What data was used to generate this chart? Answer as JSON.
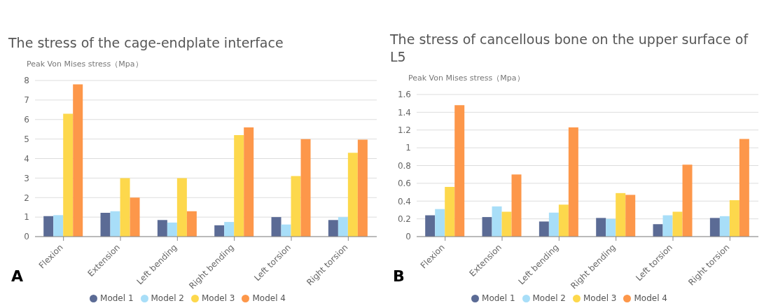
{
  "chart_data": [
    {
      "type": "bar",
      "title": "The stress of the cage-endplate interface",
      "ylabel": "Peak Von Mises stress（Mpa）",
      "annotations": [
        "A"
      ],
      "categories": [
        "Flexion",
        "Extension",
        "Left bending",
        "Right bending",
        "Left torsion",
        "Right torsion"
      ],
      "series": [
        {
          "name": "Model 1",
          "color": "#5b6b95",
          "values": [
            1.05,
            1.22,
            0.85,
            0.58,
            1.0,
            0.85
          ]
        },
        {
          "name": "Model 2",
          "color": "#a8def8",
          "values": [
            1.1,
            1.3,
            0.72,
            0.75,
            0.62,
            1.0
          ]
        },
        {
          "name": "Model 3",
          "color": "#fdd84c",
          "values": [
            6.3,
            3.0,
            3.0,
            5.2,
            3.1,
            4.3
          ]
        },
        {
          "name": "Model 4",
          "color": "#fd974a",
          "values": [
            7.8,
            2.0,
            1.3,
            5.6,
            5.0,
            4.97
          ]
        }
      ],
      "ylim": [
        0,
        8
      ],
      "yticks": [
        0,
        1,
        2,
        3,
        4,
        5,
        6,
        7,
        8
      ],
      "grid": "y",
      "legend": "bottom"
    },
    {
      "type": "bar",
      "title": "The stress of cancellous bone on the upper surface of L5",
      "ylabel": "Peak Von Mises stress（Mpa）",
      "annotations": [
        "B"
      ],
      "categories": [
        "Flexion",
        "Extension",
        "Left bending",
        "Right bending",
        "Left torsion",
        "Right torsion"
      ],
      "series": [
        {
          "name": "Model 1",
          "color": "#5b6b95",
          "values": [
            0.24,
            0.22,
            0.17,
            0.21,
            0.14,
            0.21
          ]
        },
        {
          "name": "Model 2",
          "color": "#a8def8",
          "values": [
            0.31,
            0.34,
            0.27,
            0.2,
            0.24,
            0.23
          ]
        },
        {
          "name": "Model 3",
          "color": "#fdd84c",
          "values": [
            0.56,
            0.28,
            0.36,
            0.49,
            0.28,
            0.41
          ]
        },
        {
          "name": "Model 4",
          "color": "#fd974a",
          "values": [
            1.48,
            0.7,
            1.23,
            0.47,
            0.81,
            1.1
          ]
        }
      ],
      "ylim": [
        0,
        1.6
      ],
      "yticks": [
        0,
        0.2,
        0.4,
        0.6,
        0.8,
        1,
        1.2,
        1.4,
        1.6
      ],
      "grid": "y",
      "legend": "bottom"
    }
  ]
}
